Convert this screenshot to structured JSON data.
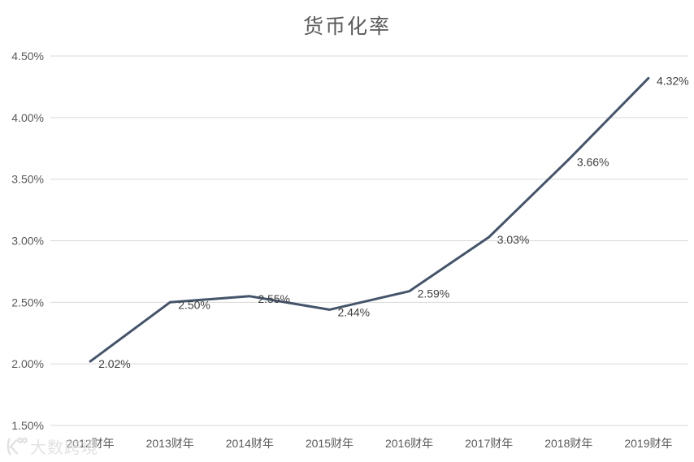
{
  "page": {
    "title": "货币化率"
  },
  "watermark": {
    "text": "大数跨境"
  },
  "chart_data": {
    "type": "line",
    "title": "货币化率",
    "categories": [
      "2012财年",
      "2013财年",
      "2014财年",
      "2015财年",
      "2016财年",
      "2017财年",
      "2018财年",
      "2019财年"
    ],
    "series": [
      {
        "name": "货币化率",
        "values": [
          2.02,
          2.5,
          2.55,
          2.44,
          2.59,
          3.03,
          3.66,
          4.32
        ]
      }
    ],
    "data_labels": [
      "2.02%",
      "2.50%",
      "2.55%",
      "2.44%",
      "2.59%",
      "3.03%",
      "3.66%",
      "4.32%"
    ],
    "xlabel": "",
    "ylabel": "",
    "ylim": [
      1.5,
      4.5
    ],
    "y_ticks": [
      {
        "value": 1.5,
        "label": "1.50%"
      },
      {
        "value": 2.0,
        "label": "2.00%"
      },
      {
        "value": 2.5,
        "label": "2.50%"
      },
      {
        "value": 3.0,
        "label": "3.00%"
      },
      {
        "value": 3.5,
        "label": "3.50%"
      },
      {
        "value": 4.0,
        "label": "4.00%"
      },
      {
        "value": 4.5,
        "label": "4.50%"
      }
    ],
    "grid": true,
    "legend": "none",
    "colors": {
      "line": "#44546A",
      "gridline": "#D9D9D9",
      "axis_text": "#595959",
      "data_label": "#404040",
      "title": "#595959"
    }
  }
}
